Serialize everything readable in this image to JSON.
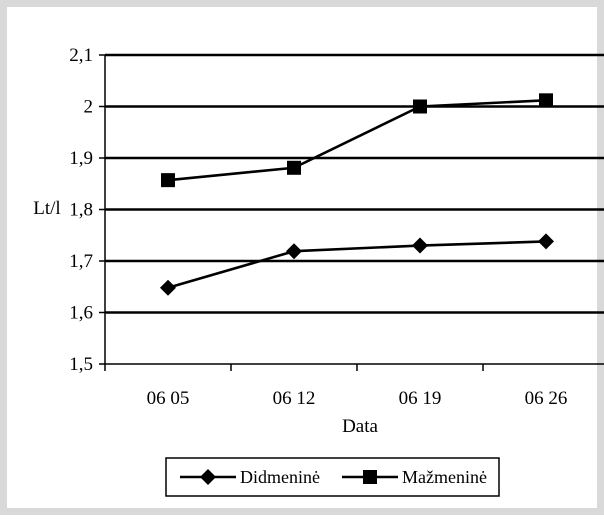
{
  "chart_data": {
    "type": "line",
    "categories": [
      "06 05",
      "06 12",
      "06 19",
      "06 26"
    ],
    "xlabel": "Data",
    "ylabel": "Lt/l",
    "ylim": [
      1.5,
      2.1
    ],
    "ytick_step": 0.1,
    "ytick_labels": [
      "1,5",
      "1,6",
      "1,7",
      "1,8",
      "1,9",
      "2",
      "2,1"
    ],
    "grid": "horizontal",
    "legend_position": "bottom",
    "series": [
      {
        "name": "Didmeninė",
        "marker": "diamond",
        "color": "#000000",
        "values": [
          1.648,
          1.719,
          1.73,
          1.738
        ]
      },
      {
        "name": "Mažmeninė",
        "marker": "square",
        "color": "#000000",
        "values": [
          1.857,
          1.881,
          2.0,
          2.012
        ]
      }
    ]
  }
}
